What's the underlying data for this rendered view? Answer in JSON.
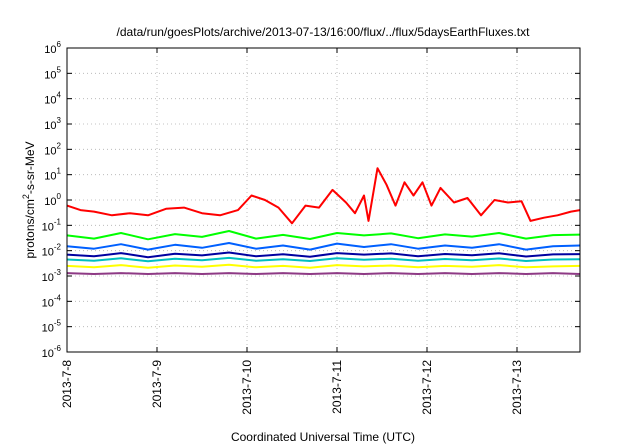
{
  "chart_data": {
    "type": "line",
    "title": "/data/run/goesPlots/archive/2013-07-13/16:00/flux/../flux/5daysEarthFluxes.txt",
    "xlabel": "Coordinated Universal Time (UTC)",
    "ylabel": {
      "pre": "protons/cm",
      "sup": "2",
      "post": "-s-sr-MeV"
    },
    "y_scale": "log",
    "ylim": [
      1e-06,
      1000000.0
    ],
    "y_ticks": [
      {
        "base": "10",
        "exp": "-6",
        "value": 1e-06
      },
      {
        "base": "10",
        "exp": "-5",
        "value": 1e-05
      },
      {
        "base": "10",
        "exp": "-4",
        "value": 0.0001
      },
      {
        "base": "10",
        "exp": "-3",
        "value": 0.001
      },
      {
        "base": "10",
        "exp": "-2",
        "value": 0.01
      },
      {
        "base": "10",
        "exp": "-1",
        "value": 0.1
      },
      {
        "base": "10",
        "exp": "0",
        "value": 1
      },
      {
        "base": "10",
        "exp": "1",
        "value": 10
      },
      {
        "base": "10",
        "exp": "2",
        "value": 100
      },
      {
        "base": "10",
        "exp": "3",
        "value": 1000
      },
      {
        "base": "10",
        "exp": "4",
        "value": 10000
      },
      {
        "base": "10",
        "exp": "5",
        "value": 100000
      },
      {
        "base": "10",
        "exp": "6",
        "value": 1000000
      }
    ],
    "x_ticks": [
      "2013-7-8",
      "2013-7-9",
      "2013-7-10",
      "2013-7-11",
      "2013-7-12",
      "2013-7-13"
    ],
    "x_tick_days": [
      8,
      9,
      10,
      11,
      12,
      13
    ],
    "xlim_days": [
      8.0,
      13.7
    ],
    "grid": true,
    "series": [
      {
        "color": "#8e3a85",
        "x": [
          8.0,
          8.3,
          8.6,
          8.9,
          9.2,
          9.5,
          9.8,
          10.1,
          10.4,
          10.7,
          11.0,
          11.3,
          11.6,
          11.9,
          12.2,
          12.5,
          12.8,
          13.1,
          13.4,
          13.7
        ],
        "y": [
          0.0013,
          0.0012,
          0.0013,
          0.0012,
          0.0013,
          0.0012,
          0.0013,
          0.0012,
          0.0013,
          0.0012,
          0.0013,
          0.0012,
          0.0013,
          0.0012,
          0.0013,
          0.0012,
          0.0013,
          0.0012,
          0.0013,
          0.0012
        ]
      },
      {
        "color": "#ffff00",
        "x": [
          8.0,
          8.3,
          8.6,
          8.9,
          9.2,
          9.5,
          9.8,
          10.1,
          10.4,
          10.7,
          11.0,
          11.3,
          11.6,
          11.9,
          12.2,
          12.5,
          12.8,
          13.1,
          13.4,
          13.7
        ],
        "y": [
          0.0025,
          0.0022,
          0.0027,
          0.0021,
          0.0026,
          0.0023,
          0.0028,
          0.0022,
          0.0025,
          0.0021,
          0.0027,
          0.0024,
          0.0026,
          0.0022,
          0.0025,
          0.0023,
          0.0027,
          0.0022,
          0.0024,
          0.0025
        ]
      },
      {
        "color": "#00c0c0",
        "x": [
          8.0,
          8.3,
          8.6,
          8.9,
          9.2,
          9.5,
          9.8,
          10.1,
          10.4,
          10.7,
          11.0,
          11.3,
          11.6,
          11.9,
          12.2,
          12.5,
          12.8,
          13.1,
          13.4,
          13.7
        ],
        "y": [
          0.0045,
          0.004,
          0.005,
          0.0038,
          0.0048,
          0.0042,
          0.0052,
          0.004,
          0.0046,
          0.0039,
          0.005,
          0.0044,
          0.0048,
          0.004,
          0.0047,
          0.0042,
          0.0049,
          0.0039,
          0.0045,
          0.0046
        ]
      },
      {
        "color": "#0000a0",
        "x": [
          8.0,
          8.3,
          8.6,
          8.9,
          9.2,
          9.5,
          9.8,
          10.1,
          10.4,
          10.7,
          11.0,
          11.3,
          11.6,
          11.9,
          12.2,
          12.5,
          12.8,
          13.1,
          13.4,
          13.7
        ],
        "y": [
          0.007,
          0.006,
          0.008,
          0.0055,
          0.0075,
          0.0065,
          0.0085,
          0.006,
          0.0072,
          0.0058,
          0.008,
          0.007,
          0.0078,
          0.006,
          0.0074,
          0.0066,
          0.0079,
          0.0059,
          0.0071,
          0.0073
        ]
      },
      {
        "color": "#0060ff",
        "x": [
          8.0,
          8.3,
          8.6,
          8.9,
          9.2,
          9.5,
          9.8,
          10.1,
          10.4,
          10.7,
          11.0,
          11.3,
          11.6,
          11.9,
          12.2,
          12.5,
          12.8,
          13.1,
          13.4,
          13.7
        ],
        "y": [
          0.015,
          0.012,
          0.018,
          0.011,
          0.017,
          0.013,
          0.02,
          0.012,
          0.016,
          0.011,
          0.019,
          0.014,
          0.018,
          0.012,
          0.016,
          0.013,
          0.018,
          0.011,
          0.015,
          0.016
        ]
      },
      {
        "color": "#00ff00",
        "x": [
          8.0,
          8.3,
          8.6,
          8.9,
          9.2,
          9.5,
          9.8,
          10.1,
          10.4,
          10.7,
          11.0,
          11.3,
          11.6,
          11.9,
          12.2,
          12.5,
          12.8,
          13.1,
          13.4,
          13.7
        ],
        "y": [
          0.04,
          0.03,
          0.05,
          0.028,
          0.045,
          0.035,
          0.06,
          0.03,
          0.042,
          0.029,
          0.05,
          0.04,
          0.048,
          0.031,
          0.044,
          0.036,
          0.05,
          0.03,
          0.041,
          0.043
        ]
      },
      {
        "color": "#ff0000",
        "x": [
          8.0,
          8.15,
          8.3,
          8.5,
          8.7,
          8.9,
          9.1,
          9.3,
          9.5,
          9.7,
          9.9,
          10.05,
          10.2,
          10.35,
          10.5,
          10.65,
          10.8,
          10.95,
          11.1,
          11.2,
          11.3,
          11.35,
          11.45,
          11.55,
          11.65,
          11.75,
          11.85,
          11.95,
          12.05,
          12.15,
          12.3,
          12.45,
          12.6,
          12.75,
          12.9,
          13.05,
          13.15,
          13.3,
          13.45,
          13.6,
          13.7
        ],
        "y": [
          0.6,
          0.4,
          0.35,
          0.25,
          0.3,
          0.25,
          0.45,
          0.5,
          0.3,
          0.25,
          0.4,
          1.5,
          1.0,
          0.5,
          0.12,
          0.6,
          0.5,
          2.5,
          0.8,
          0.3,
          1.5,
          0.15,
          18.0,
          4.0,
          0.6,
          5.0,
          1.5,
          5.0,
          0.6,
          3.0,
          0.8,
          1.2,
          0.25,
          1.0,
          0.8,
          0.9,
          0.15,
          0.2,
          0.25,
          0.35,
          0.4
        ]
      }
    ]
  }
}
